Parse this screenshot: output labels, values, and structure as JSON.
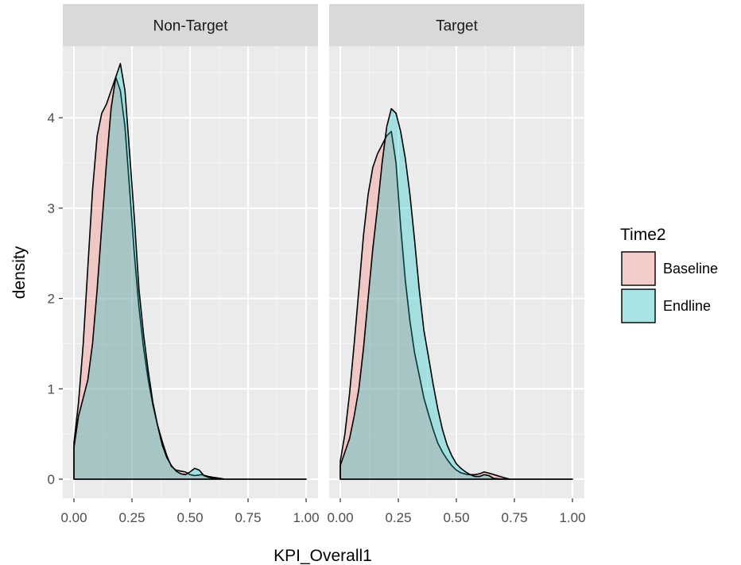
{
  "chart_data": {
    "type": "area",
    "xlabel": "KPI_Overall1",
    "ylabel": "density",
    "xlim": [
      0,
      1
    ],
    "ylim": [
      -0.2,
      5.0
    ],
    "x_ticks": [
      0,
      0.25,
      0.5,
      0.75,
      1.0
    ],
    "x_tick_labels": [
      "0.00",
      "0.25",
      "0.50",
      "0.75",
      "1.00"
    ],
    "y_ticks": [
      0,
      1,
      2,
      3,
      4
    ],
    "y_tick_labels": [
      "0",
      "1",
      "2",
      "3",
      "4"
    ],
    "grid": true,
    "legend": {
      "title": "Time2",
      "position": "right",
      "entries": [
        {
          "label": "Baseline",
          "color": "#F8766D"
        },
        {
          "label": "Endline",
          "color": "#00BFC4"
        }
      ]
    },
    "fill_alpha": 0.3,
    "panels": [
      {
        "strip": "Non-Target",
        "series": [
          {
            "name": "Baseline",
            "x": [
              0,
              0.02,
              0.04,
              0.06,
              0.08,
              0.1,
              0.12,
              0.14,
              0.16,
              0.18,
              0.2,
              0.22,
              0.24,
              0.26,
              0.28,
              0.3,
              0.32,
              0.34,
              0.36,
              0.38,
              0.4,
              0.42,
              0.44,
              0.46,
              0.48,
              0.5,
              0.52,
              0.55,
              0.58,
              0.6,
              0.63,
              0.65,
              1.0
            ],
            "y": [
              0.4,
              0.85,
              1.5,
              2.35,
              3.2,
              3.8,
              4.05,
              4.15,
              4.3,
              4.45,
              4.3,
              3.9,
              3.2,
              2.5,
              1.9,
              1.45,
              1.1,
              0.82,
              0.6,
              0.42,
              0.26,
              0.14,
              0.1,
              0.09,
              0.08,
              0.05,
              0.04,
              0.05,
              0.03,
              0.02,
              0.01,
              0.0,
              0.0
            ]
          },
          {
            "name": "Endline",
            "x": [
              0,
              0.02,
              0.04,
              0.06,
              0.08,
              0.1,
              0.12,
              0.14,
              0.16,
              0.18,
              0.2,
              0.22,
              0.24,
              0.26,
              0.28,
              0.3,
              0.32,
              0.34,
              0.36,
              0.38,
              0.4,
              0.42,
              0.44,
              0.46,
              0.48,
              0.5,
              0.52,
              0.54,
              0.56,
              0.58,
              0.6,
              0.62,
              0.65,
              1.0
            ],
            "y": [
              0.35,
              0.7,
              0.9,
              1.1,
              1.5,
              2.1,
              2.8,
              3.5,
              4.1,
              4.45,
              4.6,
              4.3,
              3.6,
              2.9,
              2.1,
              1.6,
              1.2,
              0.85,
              0.6,
              0.38,
              0.24,
              0.15,
              0.09,
              0.06,
              0.05,
              0.08,
              0.12,
              0.1,
              0.04,
              0.02,
              0.01,
              0.0,
              0.0,
              0.0
            ]
          }
        ]
      },
      {
        "strip": "Target",
        "series": [
          {
            "name": "Baseline",
            "x": [
              0,
              0.02,
              0.04,
              0.06,
              0.08,
              0.1,
              0.12,
              0.14,
              0.16,
              0.18,
              0.2,
              0.22,
              0.24,
              0.26,
              0.28,
              0.3,
              0.32,
              0.34,
              0.36,
              0.38,
              0.4,
              0.42,
              0.44,
              0.46,
              0.48,
              0.5,
              0.52,
              0.55,
              0.58,
              0.6,
              0.62,
              0.65,
              0.7,
              0.73,
              1.0
            ],
            "y": [
              0.2,
              0.5,
              0.95,
              1.5,
              2.1,
              2.7,
              3.15,
              3.45,
              3.6,
              3.7,
              3.8,
              3.85,
              3.5,
              2.8,
              2.2,
              1.75,
              1.4,
              1.15,
              0.9,
              0.72,
              0.55,
              0.4,
              0.3,
              0.22,
              0.15,
              0.1,
              0.07,
              0.05,
              0.05,
              0.06,
              0.08,
              0.06,
              0.02,
              0.0,
              0.0
            ]
          },
          {
            "name": "Endline",
            "x": [
              0,
              0.02,
              0.04,
              0.06,
              0.08,
              0.1,
              0.12,
              0.14,
              0.16,
              0.18,
              0.2,
              0.22,
              0.24,
              0.26,
              0.28,
              0.3,
              0.32,
              0.34,
              0.36,
              0.38,
              0.4,
              0.42,
              0.44,
              0.46,
              0.48,
              0.5,
              0.52,
              0.54,
              0.56,
              0.58,
              0.6,
              0.62,
              0.64,
              0.66,
              0.7,
              1.0
            ],
            "y": [
              0.15,
              0.3,
              0.45,
              0.7,
              1.0,
              1.45,
              2.0,
              2.55,
              3.0,
              3.5,
              3.9,
              4.1,
              4.05,
              3.85,
              3.55,
              3.15,
              2.65,
              2.1,
              1.65,
              1.35,
              1.05,
              0.78,
              0.55,
              0.38,
              0.26,
              0.17,
              0.12,
              0.08,
              0.05,
              0.03,
              0.03,
              0.05,
              0.04,
              0.01,
              0.0,
              0.0
            ]
          }
        ]
      }
    ]
  }
}
